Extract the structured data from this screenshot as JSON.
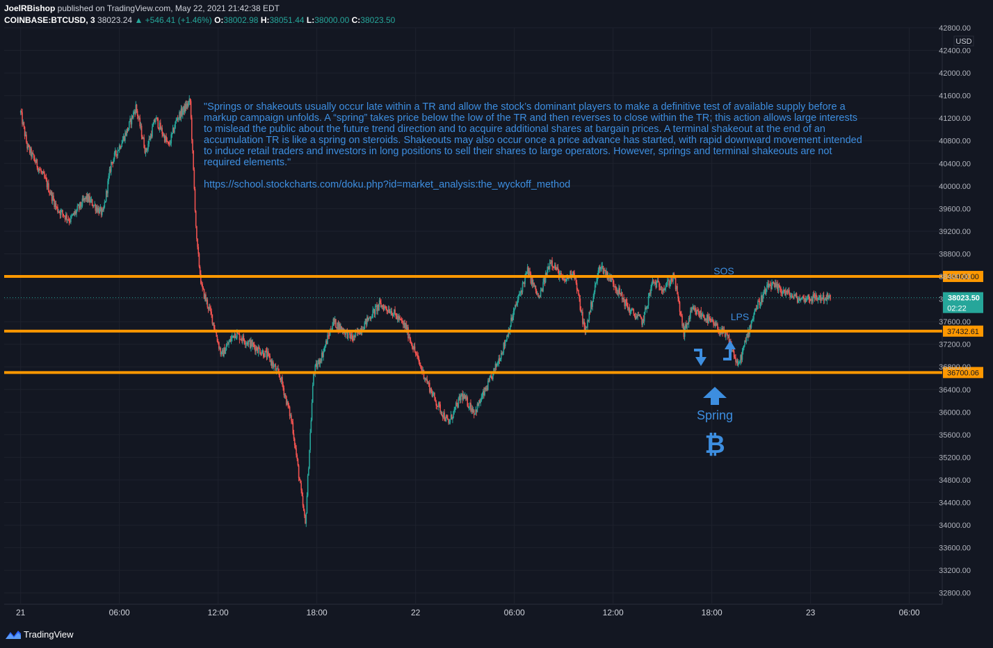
{
  "header": {
    "author": "JoelRBishop",
    "published": " published on TradingView.com, May 22, 2021 21:42:38 EDT",
    "symbol": "COINBASE:BTCUSD, 3",
    "last": "38023.24",
    "change": "▲ +546.41 (+1.46%)",
    "o_label": "O:",
    "o_value": "38002.98",
    "h_label": "H:",
    "h_value": "38051.44",
    "l_label": "L:",
    "l_value": "38000.00",
    "c_label": "C:",
    "c_value": "38023.50"
  },
  "footer": {
    "brand": "TradingView"
  },
  "chart_data": {
    "type": "candlestick",
    "currency_label": "USD",
    "y_range": [
      32600,
      42800
    ],
    "y_ticks": [
      42800,
      42400,
      42000,
      41600,
      41200,
      40800,
      40400,
      40000,
      39600,
      39200,
      38800,
      38400,
      38000,
      37600,
      37200,
      36800,
      36400,
      36000,
      35600,
      35200,
      34800,
      34400,
      34000,
      33600,
      33200,
      32800
    ],
    "x_ticks": [
      "21",
      "06:00",
      "12:00",
      "18:00",
      "22",
      "06:00",
      "12:00",
      "18:00",
      "23",
      "06:00"
    ],
    "x_range_hours": [
      -1,
      56
    ],
    "levels": [
      {
        "value": 38400.0,
        "label": "38400.00",
        "color": "#ff9800"
      },
      {
        "value": 37432.61,
        "label": "37432.61",
        "color": "#ff9800"
      },
      {
        "value": 36700.06,
        "label": "36700.06",
        "color": "#ff9800"
      }
    ],
    "last_price": {
      "value": 38023.5,
      "label": "38023.50",
      "countdown": "02:22",
      "color": "#26a69a"
    },
    "up_color": "#26a69a",
    "down_color": "#ef5350",
    "price_path_hours": [
      0,
      0.4,
      1.5,
      2.2,
      3,
      4,
      5,
      5.5,
      6.5,
      7,
      7.6,
      8.2,
      9,
      9.5,
      10.3,
      10.7,
      11,
      11.6,
      12.2,
      13,
      14,
      15,
      15.8,
      16.5,
      17.3,
      17.8,
      18.3,
      19,
      20.2,
      21,
      21.8,
      22.5,
      23.4,
      24.3,
      25.2,
      26,
      26.8,
      27.6,
      28.6,
      29.4,
      30,
      30.8,
      31.5,
      32.2,
      33,
      33.6,
      34.3,
      35.2,
      36,
      37,
      37.8,
      38.4,
      39.1,
      39.7,
      40.3,
      40.8,
      41.5,
      42.3,
      43,
      43.6,
      44.2,
      44.6,
      45.5,
      46.3,
      46.9,
      47.3,
      47.8,
      48.3,
      48.7,
      49.2
    ],
    "price_path_values": [
      41300,
      40700,
      40100,
      39600,
      39400,
      39800,
      39500,
      40400,
      41000,
      41400,
      40600,
      41200,
      40700,
      41200,
      41500,
      39000,
      38200,
      37700,
      37000,
      37400,
      37200,
      37000,
      36600,
      35800,
      34000,
      36700,
      37000,
      37600,
      37300,
      37600,
      37900,
      37800,
      37500,
      36800,
      36200,
      35800,
      36300,
      36000,
      36600,
      37200,
      37800,
      38500,
      38000,
      38700,
      38300,
      38500,
      37400,
      38600,
      38300,
      37800,
      37600,
      38300,
      38200,
      38400,
      37400,
      37800,
      37700,
      37500,
      37300,
      36800,
      37400,
      37800,
      38250,
      38150,
      38050,
      38000,
      38023,
      38020,
      38025,
      38023
    ]
  },
  "annotations": {
    "quote": "\"Springs or shakeouts usually occur late within a TR and allow the stock’s dominant players to make a definitive test of available supply before a markup campaign unfolds. A “spring” takes price below the low of the TR and then reverses to close within the TR; this action allows large interests to mislead the public about the future trend direction and to acquire additional shares at bargain prices. A terminal shakeout at the end of an accumulation TR is like a spring on steroids. Shakeouts may also occur once a price advance has started, with rapid downward movement intended to induce retail traders and investors in long positions to sell their shares to large operators. However, springs and terminal shakeouts are not required elements.\"",
    "url": "https://school.stockcharts.com/doku.php?id=market_analysis:the_wyckoff_method",
    "sos": "SOS",
    "lps": "LPS",
    "spring": "Spring",
    "bitcoin_symbol": "₿",
    "text_color": "#3d8ee0"
  }
}
